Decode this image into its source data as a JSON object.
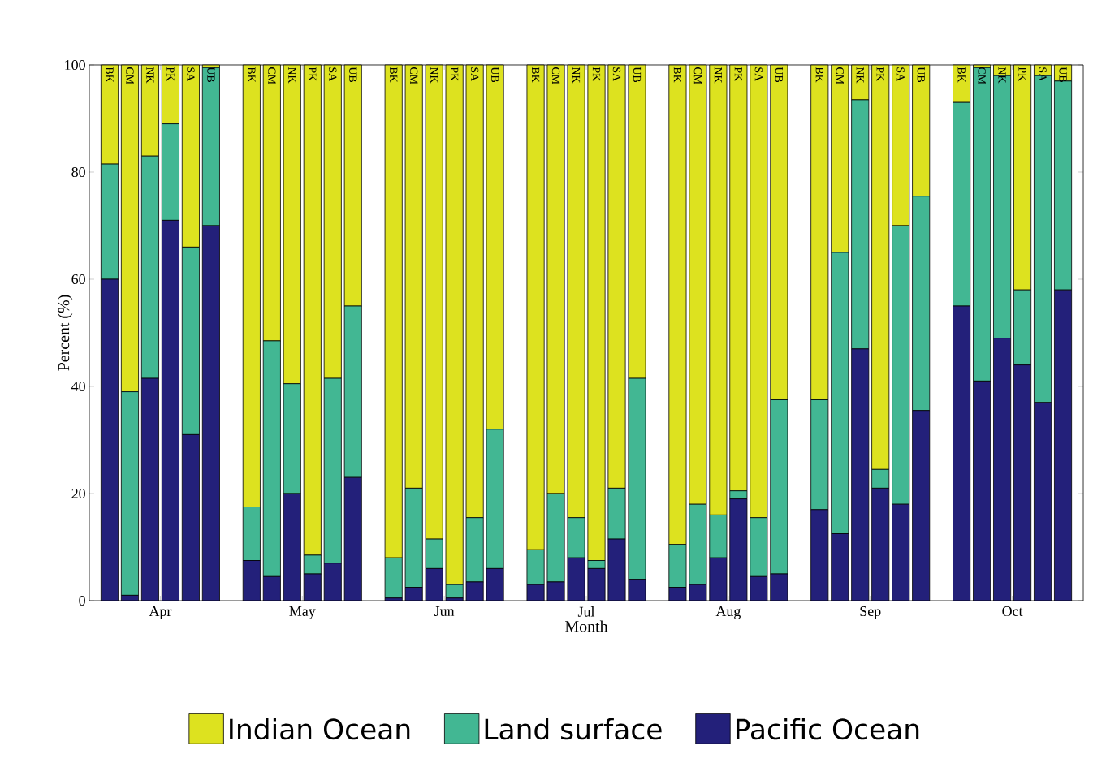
{
  "chart_data": {
    "type": "bar",
    "stacked": true,
    "ylabel": "Percent (%)",
    "xlabel": "Month",
    "ylim": [
      0,
      100
    ],
    "yticks": [
      0,
      20,
      40,
      60,
      80,
      100
    ],
    "grid": false,
    "legend": "bottom",
    "annotations": [
      "Apr",
      "May",
      "Jun",
      "Jul",
      "Aug",
      "Sep",
      "Oct"
    ],
    "categories": [
      "BK",
      "CM",
      "NK",
      "PK",
      "SA",
      "UB",
      "BK",
      "CM",
      "NK",
      "PK",
      "SA",
      "UB",
      "BK",
      "CM",
      "NK",
      "PK",
      "SA",
      "UB",
      "BK",
      "CM",
      "NK",
      "PK",
      "SA",
      "UB",
      "BK",
      "CM",
      "NK",
      "PK",
      "SA",
      "UB",
      "BK",
      "CM",
      "NK",
      "PK",
      "SA",
      "UB",
      "BK",
      "CM",
      "NK",
      "PK",
      "SA",
      "UB"
    ],
    "series": [
      {
        "name": "Pacific Ocean",
        "color": "#23207a",
        "values": [
          60,
          1,
          41.5,
          71,
          31,
          70,
          7.5,
          4.5,
          20,
          5,
          7,
          23,
          0.5,
          2.5,
          6,
          0.5,
          3.5,
          6,
          3,
          3.5,
          8,
          6,
          11.5,
          4,
          2.5,
          3,
          8,
          19,
          4.5,
          5,
          17,
          12.5,
          47,
          21,
          18,
          35.5,
          55,
          41,
          49,
          44,
          37,
          58
        ]
      },
      {
        "name": "Land surface",
        "color": "#42b793",
        "values": [
          21.5,
          38,
          41.5,
          18,
          35,
          29.5,
          10,
          44,
          20.5,
          3.5,
          34.5,
          32,
          7.5,
          18.5,
          5.5,
          2.5,
          12,
          26,
          6.5,
          16.5,
          7.5,
          1.5,
          9.5,
          37.5,
          8,
          15,
          8,
          1.5,
          11,
          32.5,
          20.5,
          52.5,
          46.5,
          3.5,
          52,
          40,
          38,
          58.5,
          49,
          14,
          61,
          39
        ]
      },
      {
        "name": "Indian Ocean",
        "color": "#dde21f",
        "values": [
          18.5,
          61,
          17,
          11,
          34,
          0.5,
          82.5,
          51.5,
          59.5,
          91.5,
          58.5,
          45,
          92,
          79,
          88.5,
          97,
          84.5,
          68,
          90.5,
          80,
          84.5,
          92.5,
          79,
          58.5,
          89.5,
          82,
          84,
          79.5,
          84.5,
          62.5,
          62.5,
          35,
          6.5,
          75.5,
          30,
          24.5,
          7,
          0.5,
          2,
          42,
          2,
          3
        ]
      }
    ]
  }
}
